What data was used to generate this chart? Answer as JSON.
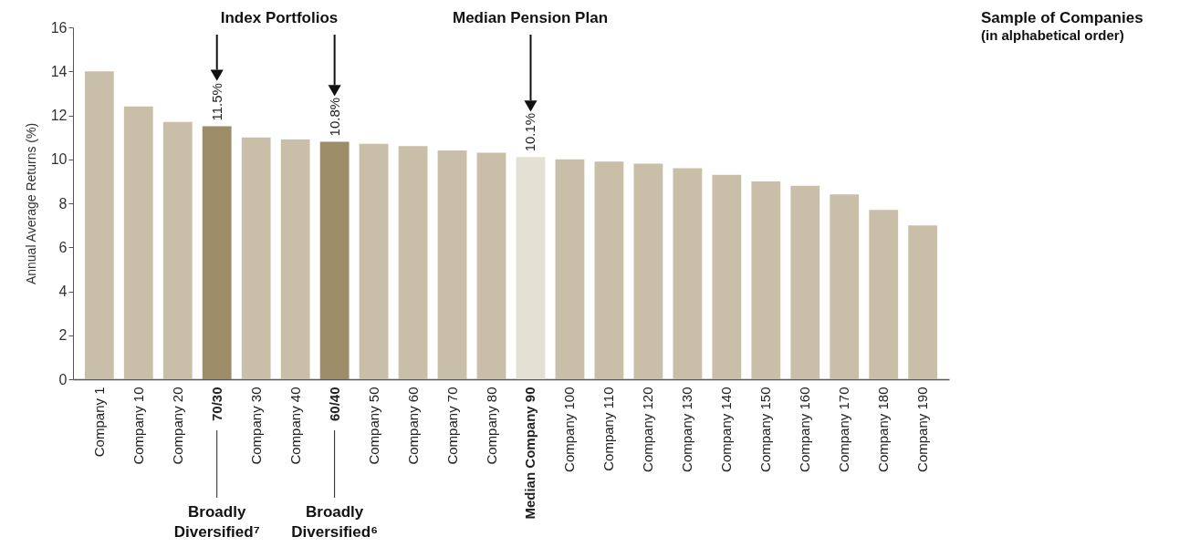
{
  "chart_data": {
    "type": "bar",
    "ylabel": "Annual Average Returns (%)",
    "categories": [
      "Company 1",
      "Company 10",
      "Company 20",
      "70/30",
      "Company 30",
      "Company 40",
      "60/40",
      "Company 50",
      "Company 60",
      "Company 70",
      "Company 80",
      "Median Company 90",
      "Company 100",
      "Company 110",
      "Company 120",
      "Company 130",
      "Company 140",
      "Company 150",
      "Company 160",
      "Company 170",
      "Company 180",
      "Company 190"
    ],
    "values": [
      14.0,
      12.4,
      11.7,
      11.5,
      11.0,
      10.9,
      10.8,
      10.7,
      10.6,
      10.4,
      10.3,
      10.1,
      10.0,
      9.9,
      9.8,
      9.6,
      9.3,
      9.0,
      8.8,
      8.4,
      7.7,
      7.0
    ],
    "value_labels": [
      null,
      null,
      null,
      "11.5%",
      null,
      null,
      "10.8%",
      null,
      null,
      null,
      null,
      "10.1%",
      null,
      null,
      null,
      null,
      null,
      null,
      null,
      null,
      null,
      null
    ],
    "colors": [
      "#c9bea8",
      "#c9bea8",
      "#c9bea8",
      "#9c8c68",
      "#c9bea8",
      "#c9bea8",
      "#9c8c68",
      "#c9bea8",
      "#c9bea8",
      "#c9bea8",
      "#c9bea8",
      "#e5e0d4",
      "#c9bea8",
      "#c9bea8",
      "#c9bea8",
      "#c9bea8",
      "#c9bea8",
      "#c9bea8",
      "#c9bea8",
      "#c9bea8",
      "#c9bea8",
      "#c9bea8"
    ],
    "ylim": [
      0,
      16
    ],
    "yticks": [
      0,
      2,
      4,
      6,
      8,
      10,
      12,
      14,
      16
    ],
    "grid": false,
    "annotations": [
      "Index Portfolios",
      "Median Pension Plan",
      {
        "text": "Broadly Diversified⁷",
        "x": "70/30"
      },
      {
        "text": "Broadly Diversified⁶",
        "x": "60/40"
      },
      "Sample of Companies",
      "(in alphabetical order)"
    ]
  }
}
